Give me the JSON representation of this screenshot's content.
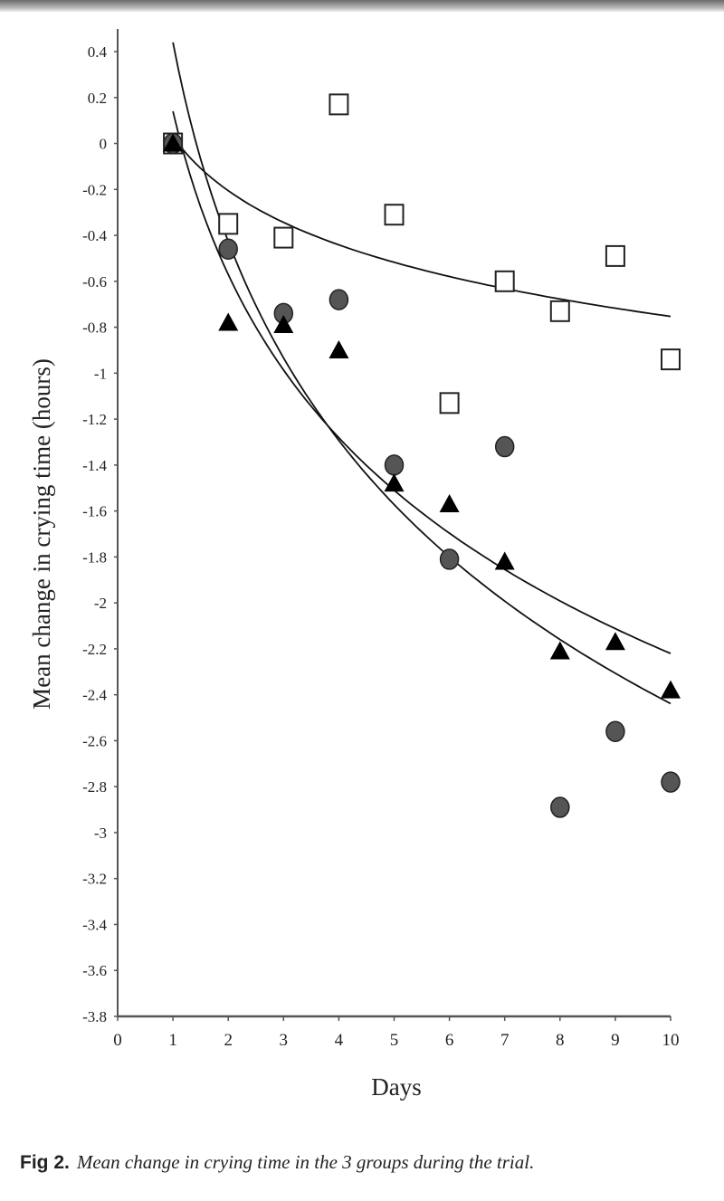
{
  "chart_data": {
    "type": "scatter",
    "xlabel": "Days",
    "ylabel": "Mean change in crying time (hours)",
    "xlim": [
      0,
      10
    ],
    "ylim": [
      -3.8,
      0.4
    ],
    "xticks": [
      "0",
      "1",
      "2",
      "3",
      "4",
      "5",
      "6",
      "7",
      "8",
      "9",
      "10"
    ],
    "yticks": [
      "0.4",
      "0.2",
      "0",
      "-0.2",
      "-0.4",
      "-0.6",
      "-0.8",
      "-1",
      "-1.2",
      "-1.4",
      "-1.6",
      "-1.8",
      "-2",
      "-2.2",
      "-2.4",
      "-2.6",
      "-2.8",
      "-3",
      "-3.2",
      "-3.4",
      "-3.6",
      "-3.8"
    ],
    "grid": false,
    "x": [
      1,
      2,
      3,
      4,
      5,
      6,
      7,
      8,
      9,
      10
    ],
    "series": [
      {
        "name": "group-open-square",
        "marker": "square",
        "values": [
          0,
          -0.35,
          -0.41,
          0.17,
          -0.31,
          -1.13,
          -0.6,
          -0.73,
          -0.49,
          -0.94
        ],
        "trend": {
          "type": "log",
          "a": 0.03,
          "b": -0.34
        }
      },
      {
        "name": "group-gray-circle",
        "marker": "circle",
        "values": [
          0,
          -0.46,
          -0.74,
          -0.68,
          -1.4,
          -1.81,
          -1.32,
          -2.89,
          -2.56,
          -2.78
        ],
        "trend": {
          "type": "log",
          "a": 0.44,
          "b": -1.25
        }
      },
      {
        "name": "group-black-triangle",
        "marker": "triangle",
        "values": [
          0,
          -0.78,
          -0.79,
          -0.9,
          -1.48,
          -1.57,
          -1.82,
          -2.21,
          -2.17,
          -2.38
        ],
        "trend": {
          "type": "log",
          "a": 0.14,
          "b": -1.025
        }
      }
    ],
    "colors": {
      "circle": "#555555",
      "triangle": "#000000",
      "square": "#ffffff"
    }
  },
  "caption": {
    "label": "Fig 2.",
    "text": "Mean change in crying time in the 3 groups during the trial."
  }
}
